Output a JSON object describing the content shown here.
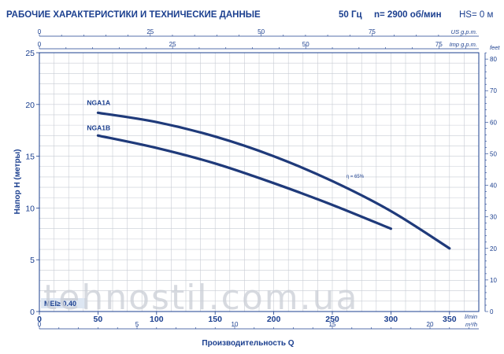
{
  "header": {
    "title": "РАБОЧИЕ ХАРАКТЕРИСТИКИ И ТЕХНИЧЕСКИЕ ДАННЫЕ",
    "frequency": "50 Гц",
    "speed": "n= 2900 об/мин",
    "hs": "HS= 0 м"
  },
  "chart_data": {
    "type": "line",
    "xlabel": "Производительность Q",
    "ylabel": "Напор H (метры)",
    "x_unit": "l/min",
    "xlim": [
      0,
      375
    ],
    "ylim": [
      0,
      25
    ],
    "x_ticks": [
      "0",
      "50",
      "100",
      "150",
      "200",
      "250",
      "300",
      "350"
    ],
    "y_ticks": [
      "0",
      "5",
      "10",
      "15",
      "20",
      "25"
    ],
    "grid": true,
    "secondary_axes": {
      "us_gpm": {
        "unit": "US g.p.m.",
        "ticks": [
          "0",
          "25",
          "50",
          "75"
        ]
      },
      "imp_gpm": {
        "unit": "Imp g.p.m.",
        "ticks": [
          "0",
          "25",
          "50",
          "75"
        ]
      },
      "m3h": {
        "unit": "m³/h",
        "ticks": [
          "0",
          "5",
          "10",
          "15",
          "20"
        ]
      },
      "feet": {
        "unit": "feet",
        "ticks": [
          "0",
          "10",
          "20",
          "30",
          "40",
          "50",
          "60",
          "70",
          "80"
        ]
      }
    },
    "series": [
      {
        "name": "NGA1A",
        "x": [
          50,
          100,
          150,
          200,
          250,
          300,
          350
        ],
        "y": [
          19.2,
          18.3,
          16.9,
          15.0,
          12.6,
          9.7,
          6.1
        ]
      },
      {
        "name": "NGA1B",
        "x": [
          50,
          100,
          150,
          200,
          250,
          300
        ],
        "y": [
          17.0,
          15.8,
          14.3,
          12.4,
          10.3,
          8.0
        ]
      }
    ],
    "annotations": [
      {
        "text": "η = 65%",
        "x": 262,
        "y": 12.9
      },
      {
        "text": "MEI≥ 0.40"
      }
    ],
    "watermark": "tehnostil.com.ua"
  }
}
